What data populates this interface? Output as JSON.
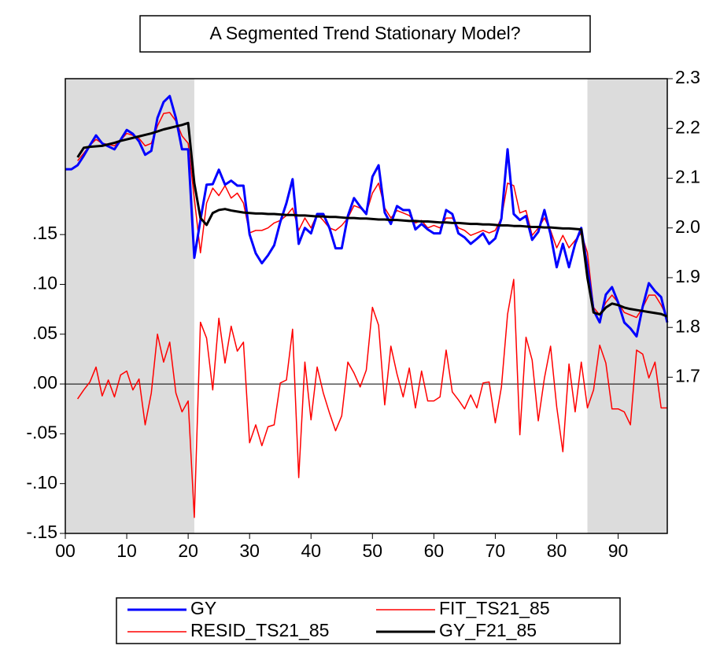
{
  "chart_data": {
    "type": "line",
    "title": "A Segmented Trend Stationary Model?",
    "x": [
      0,
      1,
      2,
      3,
      4,
      5,
      6,
      7,
      8,
      9,
      10,
      11,
      12,
      13,
      14,
      15,
      16,
      17,
      18,
      19,
      20,
      21,
      22,
      23,
      24,
      25,
      26,
      27,
      28,
      29,
      30,
      31,
      32,
      33,
      34,
      35,
      36,
      37,
      38,
      39,
      40,
      41,
      42,
      43,
      44,
      45,
      46,
      47,
      48,
      49,
      50,
      51,
      52,
      53,
      54,
      55,
      56,
      57,
      58,
      59,
      60,
      61,
      62,
      63,
      64,
      65,
      66,
      67,
      68,
      69,
      70,
      71,
      72,
      73,
      74,
      75,
      76,
      77,
      78,
      79,
      80,
      81,
      82,
      83,
      84,
      85,
      86,
      87,
      88,
      89,
      90,
      91,
      92,
      93,
      94,
      95,
      96,
      97,
      98
    ],
    "xlim": [
      0,
      98
    ],
    "xticks": [
      {
        "value": 0,
        "label": "00"
      },
      10,
      20,
      30,
      40,
      50,
      60,
      70,
      80,
      90
    ],
    "ylim": [
      -0.15,
      0.3065
    ],
    "yticks": [
      {
        "value": -0.15,
        "label": "-.15"
      },
      {
        "value": -0.1,
        "label": "-.10"
      },
      {
        "value": -0.05,
        "label": "-.05"
      },
      {
        "value": 0,
        "label": ".00"
      },
      {
        "value": 0.05,
        "label": ".05"
      },
      {
        "value": 0.1,
        "label": ".10"
      },
      {
        "value": 0.15,
        "label": ".15"
      }
    ],
    "y2lim": [
      1.386,
      2.3
    ],
    "y2ticks": [
      1.7,
      1.8,
      1.9,
      {
        "value": 2.0,
        "label": "2.0"
      },
      2.1,
      2.2,
      2.3
    ],
    "shade_x": [
      [
        0,
        21
      ],
      [
        85,
        98
      ]
    ],
    "shade_color": "#dcdcdc",
    "zero_line": true,
    "series": [
      {
        "name": "GY",
        "color": "#0000ff",
        "width": 3,
        "axis": "y2",
        "values": [
          2.118,
          2.118,
          2.126,
          2.145,
          2.166,
          2.186,
          2.17,
          2.164,
          2.158,
          2.177,
          2.197,
          2.189,
          2.174,
          2.147,
          2.155,
          2.221,
          2.253,
          2.265,
          2.221,
          2.158,
          2.158,
          1.94,
          2.016,
          2.087,
          2.088,
          2.117,
          2.087,
          2.095,
          2.085,
          2.085,
          1.987,
          1.949,
          1.929,
          1.945,
          1.965,
          2.012,
          2.05,
          2.098,
          1.968,
          2.0,
          1.989,
          2.028,
          2.028,
          2.0,
          1.959,
          1.959,
          2.024,
          2.06,
          2.043,
          2.028,
          2.103,
          2.126,
          2.031,
          2.008,
          2.044,
          2.036,
          2.036,
          1.997,
          2.008,
          1.997,
          1.989,
          1.989,
          2.036,
          2.028,
          1.989,
          1.981,
          1.968,
          1.978,
          1.989,
          1.968,
          1.979,
          2.019,
          2.158,
          2.028,
          2.016,
          2.024,
          1.976,
          1.992,
          2.036,
          1.987,
          1.921,
          1.968,
          1.921,
          1.968,
          2.0,
          1.921,
          1.834,
          1.81,
          1.866,
          1.881,
          1.85,
          1.81,
          1.798,
          1.782,
          1.842,
          1.889,
          1.873,
          1.861,
          1.81
        ]
      },
      {
        "name": "FIT_TS21_85",
        "color": "#ff0000",
        "width": 1.5,
        "axis": "y2",
        "values": [
          null,
          null,
          2.135,
          2.15,
          2.166,
          2.178,
          2.17,
          2.168,
          2.165,
          2.176,
          2.19,
          2.186,
          2.18,
          2.165,
          2.17,
          2.205,
          2.23,
          2.232,
          2.215,
          2.185,
          2.17,
          2.06,
          1.95,
          2.05,
          2.08,
          2.065,
          2.085,
          2.06,
          2.07,
          2.05,
          1.99,
          1.995,
          1.995,
          2.0,
          2.01,
          2.015,
          2.025,
          2.04,
          1.995,
          2.02,
          2.0,
          2.028,
          2.015,
          2.0,
          1.995,
          2.005,
          2.02,
          2.045,
          2.04,
          2.03,
          2.07,
          2.09,
          2.04,
          2.02,
          2.035,
          2.03,
          2.025,
          2.01,
          2.015,
          2.0,
          2.005,
          2.0,
          2.02,
          2.02,
          2.0,
          1.995,
          1.985,
          1.99,
          1.995,
          1.99,
          1.995,
          2.02,
          2.09,
          2.085,
          2.03,
          2.035,
          1.985,
          2.0,
          2.02,
          1.995,
          1.96,
          1.985,
          1.96,
          1.975,
          1.99,
          1.95,
          1.84,
          1.825,
          1.85,
          1.865,
          1.85,
          1.83,
          1.825,
          1.82,
          1.84,
          1.865,
          1.865,
          1.845,
          1.82
        ]
      },
      {
        "name": "RESID_TS21_85",
        "color": "#ff0000",
        "width": 1.5,
        "values": [
          null,
          null,
          -0.015,
          -0.006,
          0.002,
          0.017,
          -0.012,
          0.004,
          -0.013,
          0.009,
          0.013,
          -0.006,
          0.005,
          -0.041,
          -0.009,
          0.05,
          0.022,
          0.042,
          -0.009,
          -0.028,
          -0.017,
          -0.134,
          0.062,
          0.046,
          -0.006,
          0.066,
          0.021,
          0.058,
          0.033,
          0.042,
          -0.059,
          -0.041,
          -0.062,
          -0.043,
          -0.041,
          0.001,
          0.004,
          0.055,
          -0.094,
          0.022,
          -0.036,
          0.017,
          -0.009,
          -0.029,
          -0.047,
          -0.032,
          0.022,
          0.011,
          -0.003,
          0.014,
          0.077,
          0.059,
          -0.021,
          0.038,
          0.01,
          -0.013,
          0.016,
          -0.024,
          0.013,
          -0.017,
          -0.017,
          -0.013,
          0.034,
          -0.008,
          -0.016,
          -0.025,
          -0.011,
          -0.024,
          0.001,
          0.002,
          -0.039,
          -0.003,
          0.07,
          0.105,
          -0.051,
          0.047,
          0.024,
          -0.037,
          0.006,
          0.038,
          -0.023,
          -0.068,
          0.02,
          -0.028,
          0.022,
          -0.024,
          -0.006,
          0.039,
          0.021,
          -0.025,
          -0.025,
          -0.028,
          -0.041,
          0.034,
          0.03,
          0.006,
          0.022,
          -0.024,
          -0.024
        ]
      },
      {
        "name": "GY_F21_85",
        "color": "#000000",
        "width": 3,
        "axis": "y2",
        "values": [
          null,
          null,
          2.142,
          2.161,
          2.163,
          2.164,
          2.165,
          2.168,
          2.171,
          2.175,
          2.178,
          2.181,
          2.184,
          2.187,
          2.19,
          2.194,
          2.198,
          2.201,
          2.204,
          2.207,
          2.211,
          2.09,
          2.02,
          2.006,
          2.03,
          2.036,
          2.038,
          2.035,
          2.033,
          2.031,
          2.03,
          2.029,
          2.029,
          2.028,
          2.028,
          2.027,
          2.026,
          2.026,
          2.025,
          2.025,
          2.024,
          2.023,
          2.023,
          2.022,
          2.022,
          2.021,
          2.02,
          2.02,
          2.019,
          2.019,
          2.018,
          2.017,
          2.017,
          2.016,
          2.016,
          2.015,
          2.014,
          2.014,
          2.013,
          2.013,
          2.012,
          2.011,
          2.011,
          2.01,
          2.01,
          2.009,
          2.008,
          2.008,
          2.007,
          2.007,
          2.006,
          2.005,
          2.005,
          2.004,
          2.004,
          2.003,
          2.002,
          2.002,
          2.001,
          2.001,
          2.0,
          1.999,
          1.999,
          1.998,
          1.997,
          1.9,
          1.83,
          1.826,
          1.84,
          1.848,
          1.845,
          1.84,
          1.837,
          1.835,
          1.833,
          1.831,
          1.829,
          1.827,
          1.822
        ]
      }
    ]
  }
}
